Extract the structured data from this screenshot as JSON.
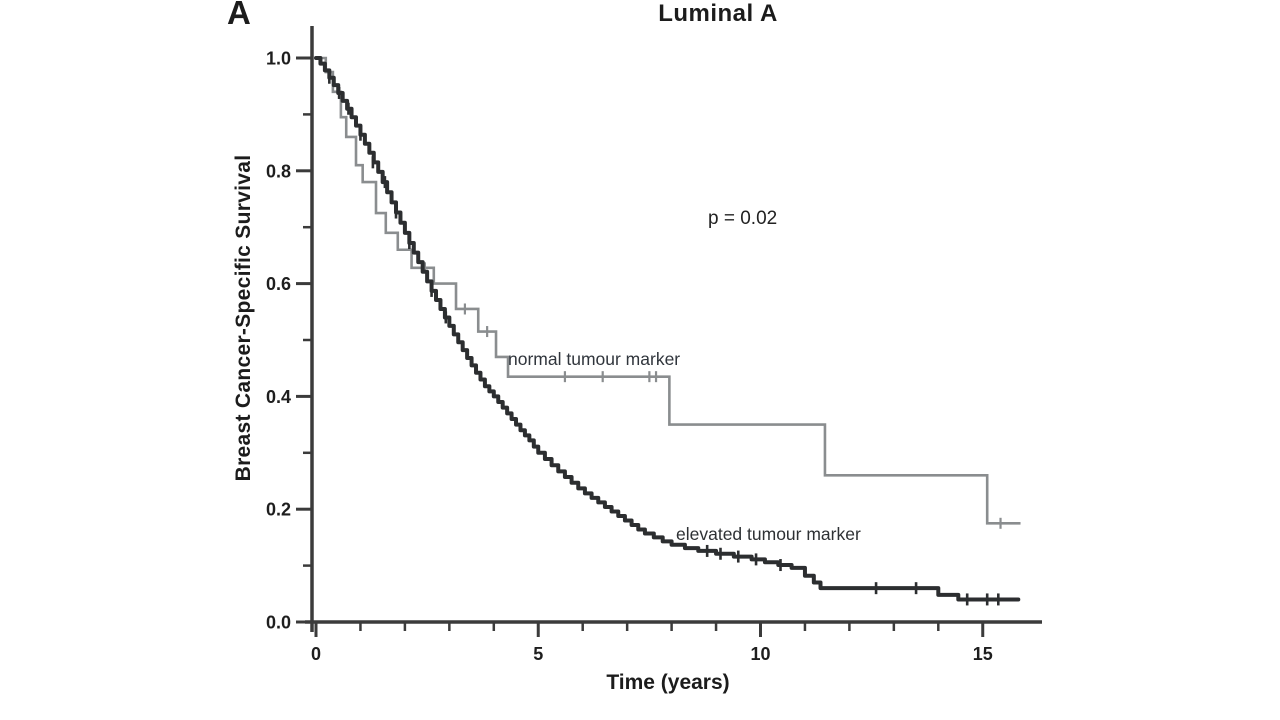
{
  "figure": {
    "panel_label": "A",
    "title": "Luminal A",
    "p_value_text": "p = 0.02",
    "background_color": "#ffffff",
    "axis_color": "#3b3b3b"
  },
  "chart_data": {
    "type": "line",
    "subtype": "kaplan_meier_step_survival",
    "title": "Luminal A",
    "xlabel": "Time (years)",
    "ylabel": "Breast Cancer-Specific Survival",
    "annotation": "p = 0.02",
    "xlim": [
      0,
      15.9
    ],
    "ylim": [
      0.0,
      1.0
    ],
    "grid": false,
    "legend_position": "inline-curve-labels",
    "x_major_ticks": [
      {
        "value": 0,
        "label": "0"
      },
      {
        "value": 5,
        "label": "5"
      },
      {
        "value": 10,
        "label": "10"
      },
      {
        "value": 15,
        "label": "15"
      }
    ],
    "x_minor_ticks": [
      1,
      2,
      3,
      4,
      6,
      7,
      8,
      9,
      11,
      12,
      13,
      14
    ],
    "y_major_ticks": [
      {
        "value": 0.0,
        "label": "0.0"
      },
      {
        "value": 0.2,
        "label": "0.2"
      },
      {
        "value": 0.4,
        "label": "0.4"
      },
      {
        "value": 0.6,
        "label": "0.6"
      },
      {
        "value": 0.8,
        "label": "0.8"
      },
      {
        "value": 1.0,
        "label": "1.0"
      }
    ],
    "y_minor_ticks": [
      0.1,
      0.3,
      0.5,
      0.7,
      0.9
    ],
    "series": [
      {
        "name": "normal tumour marker",
        "color": "#8a8d8f",
        "line_width": 2.6,
        "points": [
          [
            0,
            1.0
          ],
          [
            0.22,
            0.975
          ],
          [
            0.38,
            0.94
          ],
          [
            0.56,
            0.895
          ],
          [
            0.68,
            0.86
          ],
          [
            0.9,
            0.81
          ],
          [
            1.05,
            0.78
          ],
          [
            1.35,
            0.725
          ],
          [
            1.57,
            0.69
          ],
          [
            1.84,
            0.66
          ],
          [
            2.15,
            0.628
          ],
          [
            2.65,
            0.6
          ],
          [
            3.15,
            0.555
          ],
          [
            3.65,
            0.515
          ],
          [
            4.05,
            0.47
          ],
          [
            4.32,
            0.435
          ],
          [
            7.95,
            0.35
          ],
          [
            11.45,
            0.26
          ],
          [
            15.1,
            0.175
          ],
          [
            15.85,
            0.175
          ]
        ],
        "censor_ticks": [
          [
            2.45,
            0.628
          ],
          [
            3.35,
            0.555
          ],
          [
            3.85,
            0.515
          ],
          [
            5.6,
            0.435
          ],
          [
            6.45,
            0.435
          ],
          [
            7.5,
            0.435
          ],
          [
            7.65,
            0.435
          ],
          [
            15.4,
            0.175
          ]
        ]
      },
      {
        "name": "elevated tumour marker",
        "color": "#2c2e30",
        "line_width": 4,
        "points": [
          [
            0,
            1.0
          ],
          [
            0.1,
            0.99
          ],
          [
            0.2,
            0.978
          ],
          [
            0.3,
            0.965
          ],
          [
            0.4,
            0.952
          ],
          [
            0.5,
            0.938
          ],
          [
            0.6,
            0.924
          ],
          [
            0.7,
            0.91
          ],
          [
            0.8,
            0.895
          ],
          [
            0.9,
            0.88
          ],
          [
            1.0,
            0.864
          ],
          [
            1.1,
            0.848
          ],
          [
            1.2,
            0.832
          ],
          [
            1.3,
            0.815
          ],
          [
            1.4,
            0.798
          ],
          [
            1.5,
            0.78
          ],
          [
            1.6,
            0.762
          ],
          [
            1.7,
            0.744
          ],
          [
            1.8,
            0.726
          ],
          [
            1.9,
            0.708
          ],
          [
            2.0,
            0.69
          ],
          [
            2.1,
            0.672
          ],
          [
            2.2,
            0.655
          ],
          [
            2.3,
            0.638
          ],
          [
            2.4,
            0.621
          ],
          [
            2.5,
            0.604
          ],
          [
            2.6,
            0.587
          ],
          [
            2.7,
            0.571
          ],
          [
            2.8,
            0.555
          ],
          [
            2.9,
            0.54
          ],
          [
            3.0,
            0.525
          ],
          [
            3.1,
            0.51
          ],
          [
            3.2,
            0.496
          ],
          [
            3.3,
            0.482
          ],
          [
            3.4,
            0.468
          ],
          [
            3.5,
            0.455
          ],
          [
            3.6,
            0.442
          ],
          [
            3.7,
            0.43
          ],
          [
            3.8,
            0.418
          ],
          [
            3.9,
            0.409
          ],
          [
            4.0,
            0.4
          ],
          [
            4.1,
            0.39
          ],
          [
            4.2,
            0.38
          ],
          [
            4.3,
            0.37
          ],
          [
            4.4,
            0.36
          ],
          [
            4.5,
            0.35
          ],
          [
            4.6,
            0.34
          ],
          [
            4.7,
            0.331
          ],
          [
            4.8,
            0.322
          ],
          [
            4.9,
            0.311
          ],
          [
            5.0,
            0.3
          ],
          [
            5.15,
            0.289
          ],
          [
            5.3,
            0.278
          ],
          [
            5.45,
            0.267
          ],
          [
            5.6,
            0.257
          ],
          [
            5.75,
            0.247
          ],
          [
            5.9,
            0.237
          ],
          [
            6.05,
            0.228
          ],
          [
            6.2,
            0.22
          ],
          [
            6.35,
            0.212
          ],
          [
            6.5,
            0.204
          ],
          [
            6.65,
            0.196
          ],
          [
            6.8,
            0.188
          ],
          [
            6.95,
            0.18
          ],
          [
            7.1,
            0.172
          ],
          [
            7.25,
            0.164
          ],
          [
            7.4,
            0.157
          ],
          [
            7.6,
            0.15
          ],
          [
            7.8,
            0.143
          ],
          [
            8.0,
            0.137
          ],
          [
            8.3,
            0.131
          ],
          [
            8.6,
            0.126
          ],
          [
            9.0,
            0.121
          ],
          [
            9.4,
            0.116
          ],
          [
            9.8,
            0.111
          ],
          [
            10.1,
            0.106
          ],
          [
            10.4,
            0.101
          ],
          [
            10.7,
            0.096
          ],
          [
            11.0,
            0.082
          ],
          [
            11.2,
            0.07
          ],
          [
            11.35,
            0.06
          ],
          [
            14.0,
            0.048
          ],
          [
            14.45,
            0.04
          ],
          [
            15.8,
            0.04
          ]
        ],
        "censor_ticks": [
          [
            0.3,
            0.965
          ],
          [
            0.52,
            0.938
          ],
          [
            0.73,
            0.91
          ],
          [
            1.0,
            0.864
          ],
          [
            1.28,
            0.815
          ],
          [
            1.55,
            0.78
          ],
          [
            1.8,
            0.726
          ],
          [
            2.1,
            0.672
          ],
          [
            2.6,
            0.587
          ],
          [
            2.92,
            0.54
          ],
          [
            8.8,
            0.126
          ],
          [
            9.1,
            0.121
          ],
          [
            9.5,
            0.116
          ],
          [
            9.9,
            0.111
          ],
          [
            10.45,
            0.101
          ],
          [
            12.6,
            0.06
          ],
          [
            13.5,
            0.06
          ],
          [
            14.65,
            0.04
          ],
          [
            15.1,
            0.04
          ],
          [
            15.35,
            0.04
          ]
        ]
      }
    ]
  }
}
